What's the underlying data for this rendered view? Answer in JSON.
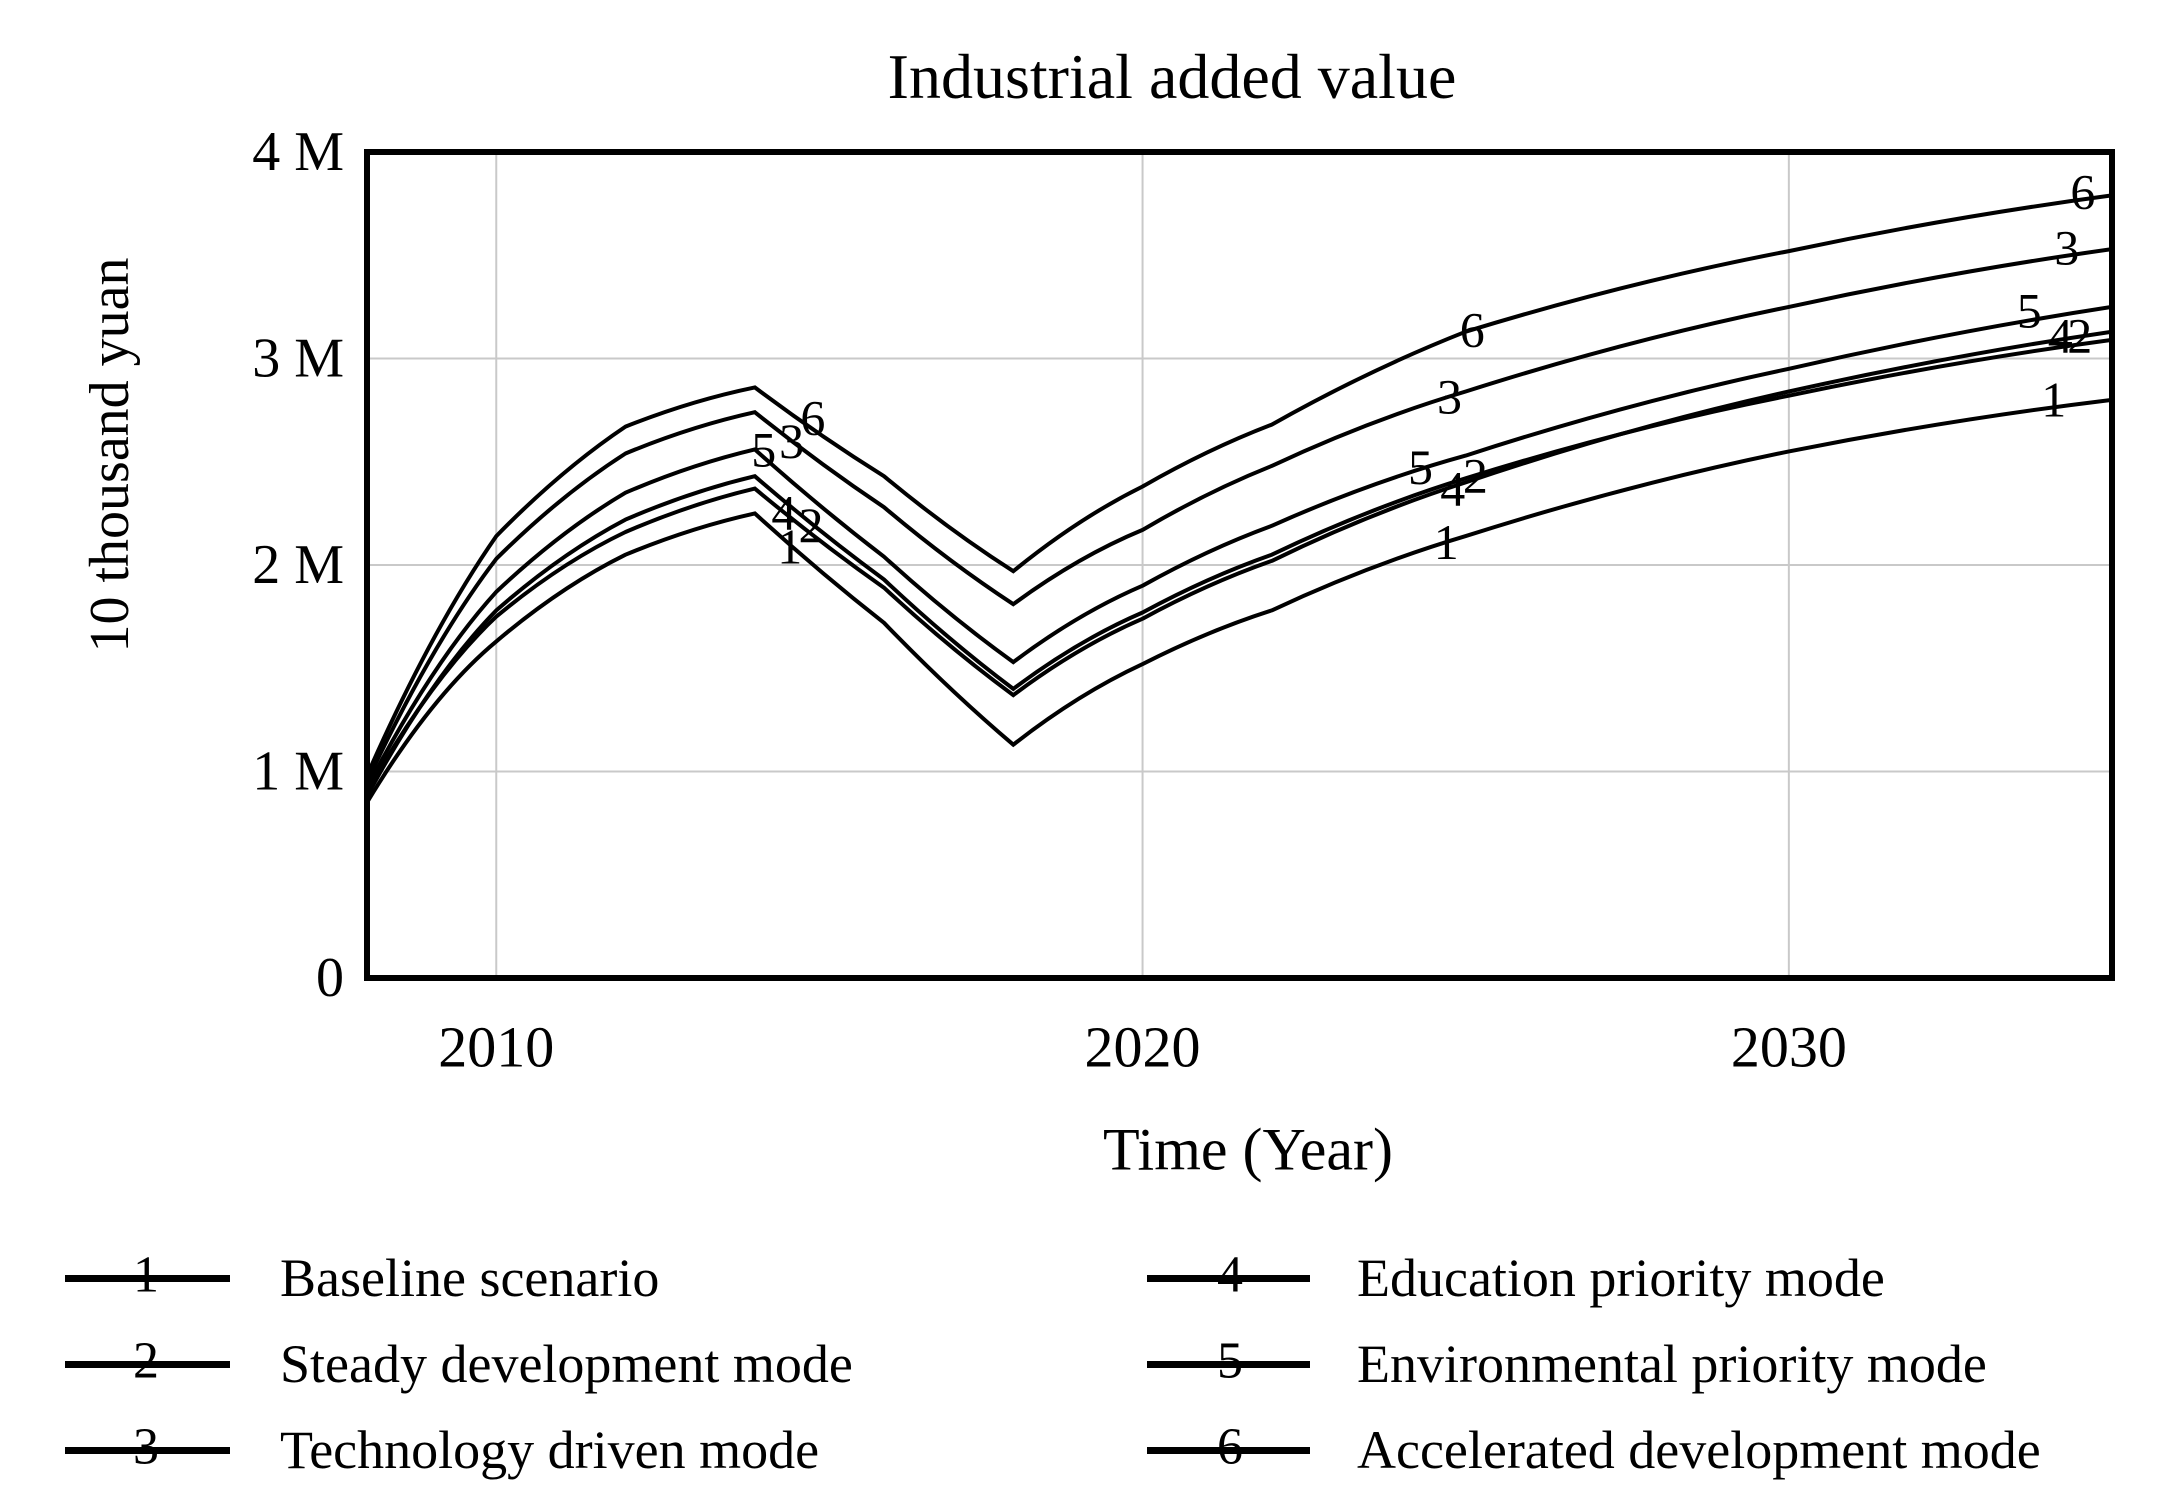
{
  "title": "Industrial added value",
  "x_axis": {
    "label": "Time (Year)",
    "ticks": [
      "2010",
      "2020",
      "2030"
    ],
    "tick_values": [
      2010,
      2020,
      2030
    ],
    "range": [
      2008,
      2035
    ]
  },
  "y_axis": {
    "label": "10 thousand yuan",
    "ticks": [
      "0",
      "1 M",
      "2 M",
      "3 M",
      "4 M"
    ],
    "tick_values": [
      0,
      1,
      2,
      3,
      4
    ],
    "range": [
      0,
      4
    ]
  },
  "colors": {
    "line": "#000000",
    "grid": "#c9c9c9",
    "background": "#ffffff",
    "text": "#000000"
  },
  "legend": [
    {
      "number": "1",
      "label": "Baseline scenario"
    },
    {
      "number": "2",
      "label": "Steady development mode"
    },
    {
      "number": "3",
      "label": "Technology driven mode"
    },
    {
      "number": "4",
      "label": "Education priority mode"
    },
    {
      "number": "5",
      "label": "Environmental priority mode"
    },
    {
      "number": "6",
      "label": "Accelerated development mode"
    }
  ],
  "chart_data": {
    "type": "line",
    "title": "Industrial added value",
    "xlabel": "Time (Year)",
    "ylabel": "10 thousand yuan",
    "xlim": [
      2008,
      2035
    ],
    "ylim": [
      0,
      4000000
    ],
    "grid": true,
    "legend_position": "bottom",
    "unit": "M = million (values in 10 thousand yuan)",
    "x": [
      2008,
      2010,
      2012,
      2014,
      2016,
      2018,
      2020,
      2022,
      2025,
      2030,
      2035
    ],
    "series": [
      {
        "number": "1",
        "name": "Baseline scenario",
        "values_M": [
          0.85,
          1.63,
          2.05,
          2.25,
          1.72,
          1.13,
          1.52,
          1.78,
          2.14,
          2.55,
          2.8
        ],
        "labels": [
          {
            "year": 2014.54,
            "dy": 2
          },
          {
            "year": 2024.7,
            "dy": 0
          },
          {
            "year": 2034.1,
            "dy": -8
          }
        ]
      },
      {
        "number": "2",
        "name": "Steady development mode",
        "values_M": [
          0.88,
          1.78,
          2.22,
          2.43,
          1.93,
          1.4,
          1.77,
          2.05,
          2.42,
          2.82,
          3.09
        ],
        "labels": [
          {
            "year": 2014.87,
            "dy": 2
          },
          {
            "year": 2025.15,
            "dy": 0
          },
          {
            "year": 2034.5,
            "dy": -9
          }
        ]
      },
      {
        "number": "3",
        "name": "Technology driven mode",
        "values_M": [
          0.95,
          2.03,
          2.54,
          2.74,
          2.28,
          1.81,
          2.17,
          2.48,
          2.84,
          3.25,
          3.53
        ],
        "labels": [
          {
            "year": 2014.57,
            "dy": 0
          },
          {
            "year": 2024.75,
            "dy": 0
          },
          {
            "year": 2034.3,
            "dy": -8
          }
        ]
      },
      {
        "number": "4",
        "name": "Education priority mode",
        "values_M": [
          0.9,
          1.75,
          2.16,
          2.37,
          1.89,
          1.37,
          1.74,
          2.02,
          2.4,
          2.84,
          3.13
        ],
        "labels": [
          {
            "year": 2014.45,
            "dy": 0
          },
          {
            "year": 2024.8,
            "dy": 2
          },
          {
            "year": 2034.2,
            "dy": -4
          }
        ]
      },
      {
        "number": "5",
        "name": "Environmental priority mode",
        "values_M": [
          0.92,
          1.87,
          2.35,
          2.56,
          2.04,
          1.53,
          1.9,
          2.19,
          2.53,
          2.95,
          3.25
        ],
        "labels": [
          {
            "year": 2014.14,
            "dy": -8
          },
          {
            "year": 2024.3,
            "dy": -2
          },
          {
            "year": 2033.72,
            "dy": -10
          }
        ]
      },
      {
        "number": "6",
        "name": "Accelerated development mode",
        "values_M": [
          0.98,
          2.14,
          2.67,
          2.86,
          2.43,
          1.97,
          2.38,
          2.68,
          3.13,
          3.52,
          3.79
        ],
        "labels": [
          {
            "year": 2014.9,
            "dy": -12
          },
          {
            "year": 2025.1,
            "dy": 0
          },
          {
            "year": 2034.55,
            "dy": -8
          }
        ]
      }
    ]
  }
}
